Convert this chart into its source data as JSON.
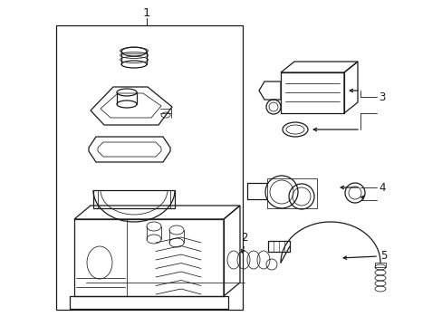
{
  "bg_color": "#ffffff",
  "line_color": "#1a1a1a",
  "lw": 0.9,
  "tlw": 0.55,
  "fs": 8.5,
  "label1": "1",
  "label2": "2",
  "label3": "3",
  "label4": "4",
  "label5": "5"
}
